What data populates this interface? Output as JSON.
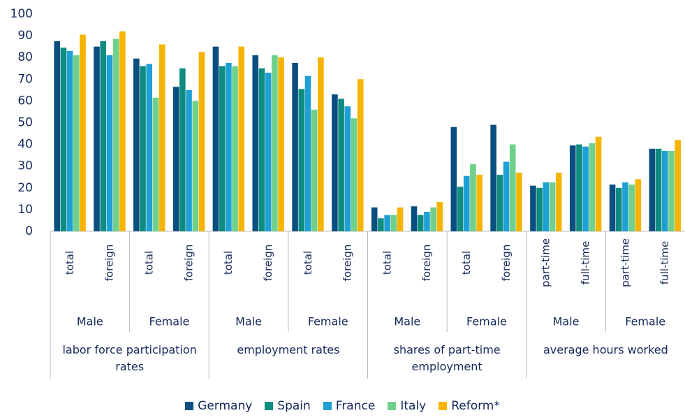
{
  "chart_data": {
    "type": "bar",
    "categories": [
      "total",
      "foreign",
      "total",
      "foreign",
      "total",
      "foreign",
      "total",
      "foreign",
      "total",
      "foreign",
      "total",
      "foreign",
      "part-time",
      "full-time",
      "part-time",
      "full-time"
    ],
    "subgroups": [
      "Male",
      "Female",
      "Male",
      "Female",
      "Male",
      "Female",
      "Male",
      "Female"
    ],
    "groups": [
      "labor force participation rates",
      "employment rates",
      "shares of part-time employment",
      "average hours worked"
    ],
    "series": [
      {
        "name": "Germany",
        "color": "#0b4f80",
        "values": [
          87.5,
          85,
          79.5,
          66.5,
          85,
          81,
          77.5,
          63,
          11,
          11.5,
          48,
          49,
          21,
          39.5,
          21.5,
          38
        ]
      },
      {
        "name": "Spain",
        "color": "#0f8c80",
        "values": [
          84.5,
          87.5,
          76,
          75,
          76,
          75,
          65.5,
          61,
          6,
          7.5,
          20.5,
          26,
          20,
          40,
          20,
          38
        ]
      },
      {
        "name": "France",
        "color": "#1fa0d4",
        "values": [
          83,
          81,
          77,
          65,
          77.5,
          73,
          71.5,
          57.5,
          7.5,
          9,
          25.5,
          32,
          22.5,
          39,
          22.5,
          37
        ]
      },
      {
        "name": "Italy",
        "color": "#6fd08c",
        "values": [
          81,
          88.5,
          61.5,
          60,
          76,
          81,
          56,
          52,
          7.5,
          11,
          31,
          40,
          22.5,
          40.5,
          21.5,
          37
        ]
      },
      {
        "name": "Reform*",
        "color": "#f6b400",
        "values": [
          90.5,
          92,
          86,
          82.5,
          85,
          80,
          80,
          70,
          11,
          13.5,
          26,
          27,
          27,
          43.5,
          24,
          42
        ]
      }
    ],
    "ylim": [
      0,
      100
    ],
    "yticks": [
      0,
      10,
      20,
      30,
      40,
      50,
      60,
      70,
      80,
      90,
      100
    ],
    "grid": false
  }
}
